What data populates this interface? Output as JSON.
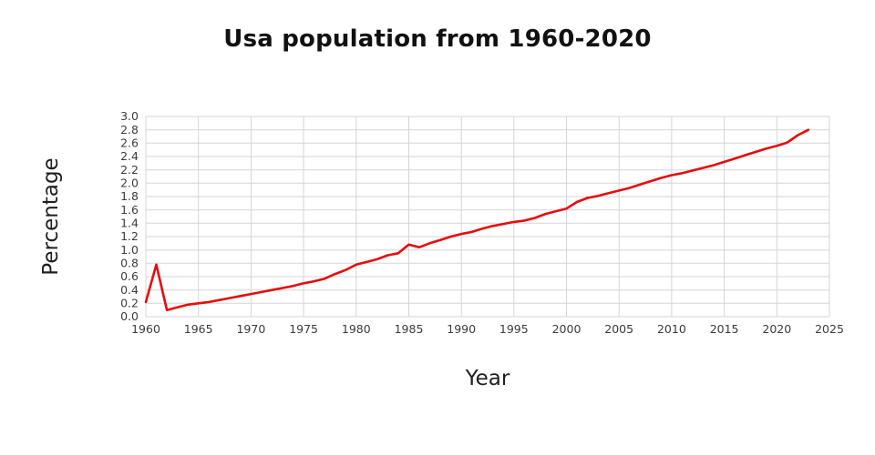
{
  "chart_data": {
    "type": "line",
    "title": "Usa population from 1960-2020",
    "xlabel": "Year",
    "ylabel": "Percentage",
    "xlim": [
      1960,
      2025
    ],
    "ylim": [
      0.0,
      3.0
    ],
    "grid": true,
    "legend": "none",
    "line_color": "#e60d0d",
    "grid_color": "#d6d6d6",
    "x_ticks": [
      1960,
      1965,
      1970,
      1975,
      1980,
      1985,
      1990,
      1995,
      2000,
      2005,
      2010,
      2015,
      2020,
      2025
    ],
    "y_ticks": [
      0.0,
      0.2,
      0.4,
      0.6,
      0.8,
      1.0,
      1.2,
      1.4,
      1.6,
      1.8,
      2.0,
      2.2,
      2.4,
      2.6,
      2.8,
      3.0
    ],
    "x": [
      1960,
      1961,
      1962,
      1963,
      1964,
      1965,
      1966,
      1967,
      1968,
      1969,
      1970,
      1971,
      1972,
      1973,
      1974,
      1975,
      1976,
      1977,
      1978,
      1979,
      1980,
      1981,
      1982,
      1983,
      1984,
      1985,
      1986,
      1987,
      1988,
      1989,
      1990,
      1991,
      1992,
      1993,
      1994,
      1995,
      1996,
      1997,
      1998,
      1999,
      2000,
      2001,
      2002,
      2003,
      2004,
      2005,
      2006,
      2007,
      2008,
      2009,
      2010,
      2011,
      2012,
      2013,
      2014,
      2015,
      2016,
      2017,
      2018,
      2019,
      2020,
      2021,
      2022,
      2023
    ],
    "y": [
      0.22,
      0.78,
      0.1,
      0.14,
      0.18,
      0.2,
      0.22,
      0.25,
      0.28,
      0.31,
      0.34,
      0.37,
      0.4,
      0.43,
      0.46,
      0.5,
      0.53,
      0.57,
      0.64,
      0.7,
      0.78,
      0.82,
      0.86,
      0.92,
      0.95,
      1.08,
      1.04,
      1.1,
      1.15,
      1.2,
      1.24,
      1.27,
      1.32,
      1.36,
      1.39,
      1.42,
      1.44,
      1.48,
      1.54,
      1.58,
      1.62,
      1.72,
      1.78,
      1.81,
      1.85,
      1.89,
      1.93,
      1.98,
      2.03,
      2.08,
      2.12,
      2.15,
      2.19,
      2.23,
      2.27,
      2.32,
      2.37,
      2.42,
      2.47,
      2.52,
      2.56,
      2.61,
      2.72,
      2.8
    ]
  }
}
